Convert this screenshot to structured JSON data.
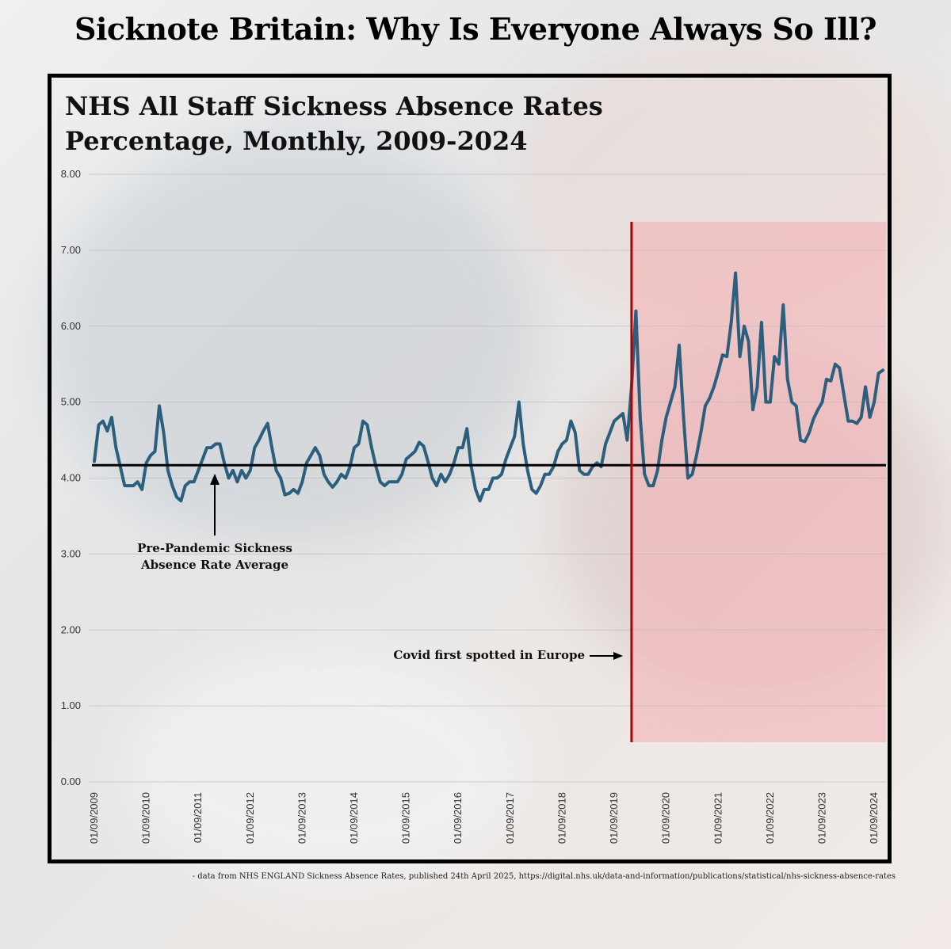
{
  "headline": "Sicknote Britain: Why Is Everyone Always So Ill?",
  "chart_title_lines": [
    "NHS All Staff Sickness Absence Rates",
    "Percentage, Monthly, 2009-2024"
  ],
  "source_note": "- data from NHS ENGLAND Sickness Absence Rates, published 24th April 2025, https://digital.nhs.uk/data-and-information/publications/statistical/nhs-sickness-absence-rates",
  "chart_data": {
    "type": "line",
    "title": "NHS All Staff Sickness Absence Rates\nPercentage, Monthly, 2009-2024",
    "xlabel": "",
    "ylabel": "",
    "ylim": [
      0,
      8
    ],
    "y_ticks": [
      "0.00",
      "1.00",
      "2.00",
      "3.00",
      "4.00",
      "5.00",
      "6.00",
      "7.00",
      "8.00"
    ],
    "x_ticks": [
      "01/09/2009",
      "01/09/2010",
      "01/09/2011",
      "01/09/2012",
      "01/09/2013",
      "01/09/2014",
      "01/09/2015",
      "01/09/2016",
      "01/09/2017",
      "01/09/2018",
      "01/09/2019",
      "01/09/2020",
      "01/09/2021",
      "01/09/2022",
      "01/09/2023",
      "01/09/2024"
    ],
    "x_start": "2009-09",
    "grid": true,
    "series_color": "#2c5f7e",
    "values": [
      4.22,
      4.7,
      4.75,
      4.62,
      4.8,
      4.4,
      4.15,
      3.9,
      3.9,
      3.9,
      3.95,
      3.85,
      4.2,
      4.3,
      4.35,
      4.95,
      4.6,
      4.1,
      3.9,
      3.75,
      3.7,
      3.9,
      3.95,
      3.95,
      4.1,
      4.25,
      4.4,
      4.4,
      4.45,
      4.45,
      4.2,
      4.0,
      4.1,
      3.95,
      4.1,
      4.0,
      4.1,
      4.4,
      4.5,
      4.62,
      4.72,
      4.4,
      4.1,
      4.0,
      3.78,
      3.8,
      3.85,
      3.8,
      3.95,
      4.2,
      4.3,
      4.4,
      4.3,
      4.05,
      3.95,
      3.88,
      3.95,
      4.05,
      4.0,
      4.15,
      4.4,
      4.45,
      4.75,
      4.7,
      4.4,
      4.15,
      3.95,
      3.9,
      3.95,
      3.95,
      3.95,
      4.05,
      4.25,
      4.3,
      4.35,
      4.47,
      4.42,
      4.22,
      4.0,
      3.9,
      4.05,
      3.95,
      4.05,
      4.2,
      4.4,
      4.4,
      4.65,
      4.15,
      3.85,
      3.7,
      3.85,
      3.85,
      4.0,
      4.0,
      4.05,
      4.25,
      4.4,
      4.55,
      5.0,
      4.45,
      4.1,
      3.85,
      3.8,
      3.9,
      4.05,
      4.05,
      4.15,
      4.35,
      4.45,
      4.5,
      4.75,
      4.6,
      4.1,
      4.05,
      4.05,
      4.15,
      4.2,
      4.15,
      4.45,
      4.6,
      4.75,
      4.8,
      4.85,
      4.5,
      5.2,
      6.2,
      4.8,
      4.05,
      3.9,
      3.9,
      4.1,
      4.5,
      4.8,
      5.0,
      5.2,
      5.75,
      4.8,
      4.0,
      4.05,
      4.3,
      4.6,
      4.95,
      5.05,
      5.2,
      5.4,
      5.62,
      5.6,
      6.05,
      6.7,
      5.6,
      6.0,
      5.8,
      4.9,
      5.2,
      6.05,
      5.0,
      5.0,
      5.6,
      5.5,
      6.28,
      5.3,
      5.0,
      4.95,
      4.5,
      4.48,
      4.6,
      4.78,
      4.9,
      5.0,
      5.3,
      5.28,
      5.5,
      5.45,
      5.1,
      4.75,
      4.75,
      4.72,
      4.8,
      5.2,
      4.8,
      5.0,
      5.38,
      5.42
    ],
    "reference_line": {
      "value": 4.17,
      "label": [
        "Pre-Pandemic Sickness",
        "Absence Rate Average"
      ]
    },
    "event_marker": {
      "date": "2020-01",
      "label": "Covid first spotted in Europe",
      "color": "#b30000",
      "shade_color": "#f2b5b8"
    }
  }
}
